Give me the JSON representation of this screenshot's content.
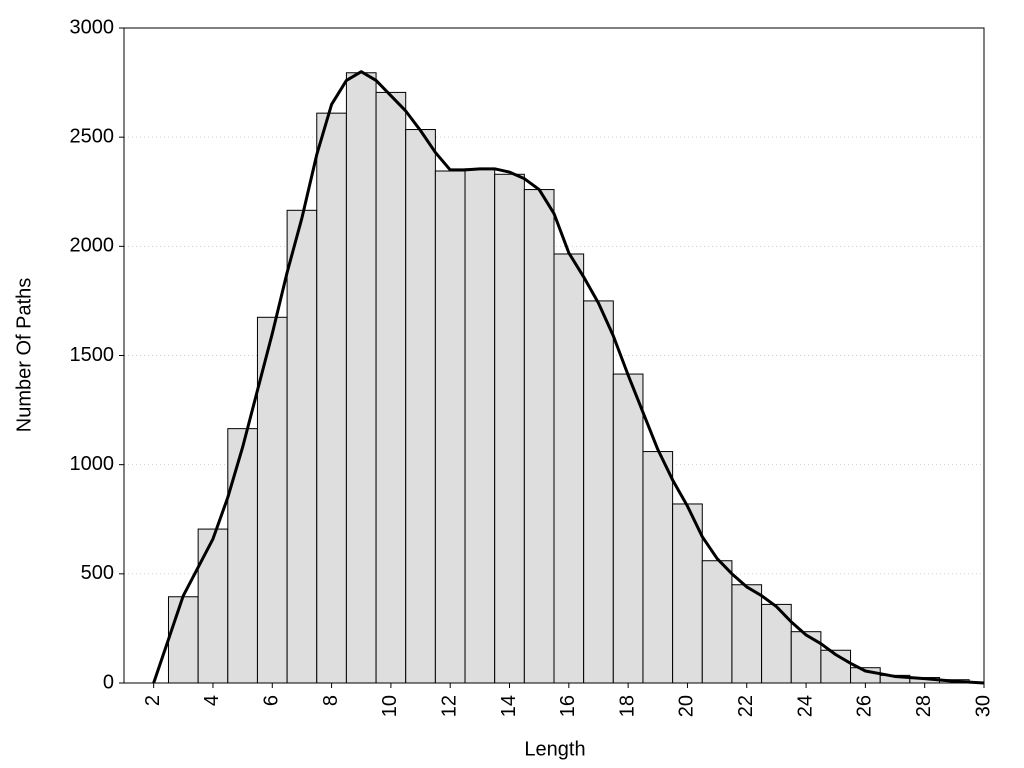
{
  "chart_data": {
    "type": "histogram",
    "xlabel": "Length",
    "ylabel": "Number Of Paths",
    "bins": [
      2.5,
      3.5,
      4.5,
      5.5,
      6.5,
      7.5,
      8.5,
      9.5,
      10.5,
      11.5,
      12.5,
      13.5,
      14.5,
      15.5,
      16.5,
      17.5,
      18.5,
      19.5,
      20.5,
      21.5,
      22.5,
      23.5,
      24.5,
      25.5,
      26.5,
      27.5,
      28.5,
      29.5
    ],
    "counts": [
      395,
      705,
      1165,
      1675,
      2165,
      2610,
      2795,
      2705,
      2535,
      2345,
      2355,
      2330,
      2260,
      1965,
      1750,
      1415,
      1060,
      820,
      560,
      450,
      360,
      235,
      150,
      70,
      35,
      25,
      15
    ],
    "color": "#dedede",
    "edgecolor": "#000000",
    "overlay": {
      "type": "line",
      "color": "#000000",
      "x": [
        2,
        2.5,
        3,
        3.5,
        4,
        4.5,
        5,
        5.5,
        6,
        6.5,
        7,
        7.5,
        8,
        8.5,
        9,
        9.5,
        10,
        10.5,
        11,
        11.5,
        12,
        12.5,
        13,
        13.5,
        14,
        14.5,
        15,
        15.5,
        16,
        16.5,
        17,
        17.5,
        18,
        18.5,
        19,
        19.5,
        20,
        20.5,
        21,
        21.5,
        22,
        22.5,
        23,
        23.5,
        24,
        24.5,
        25,
        25.5,
        26,
        27,
        28,
        29,
        30
      ],
      "y": [
        0,
        200,
        400,
        530,
        660,
        850,
        1080,
        1340,
        1600,
        1880,
        2130,
        2420,
        2650,
        2760,
        2800,
        2760,
        2690,
        2620,
        2530,
        2430,
        2350,
        2350,
        2355,
        2355,
        2340,
        2310,
        2260,
        2150,
        1970,
        1860,
        1740,
        1590,
        1410,
        1240,
        1070,
        930,
        810,
        670,
        570,
        500,
        440,
        400,
        350,
        280,
        220,
        180,
        130,
        90,
        55,
        30,
        20,
        8,
        0
      ]
    },
    "xlim": [
      1,
      30
    ],
    "ylim": [
      0,
      3000
    ],
    "xticks": [
      2,
      4,
      6,
      8,
      10,
      12,
      14,
      16,
      18,
      20,
      22,
      24,
      26,
      28,
      30
    ],
    "yticks": [
      0,
      500,
      1000,
      1500,
      2000,
      2500,
      3000
    ],
    "grid": true
  }
}
